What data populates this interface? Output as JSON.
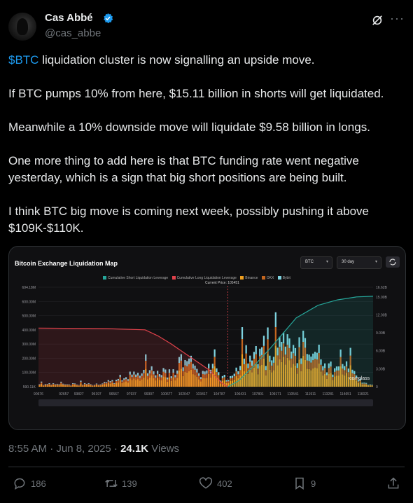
{
  "author": {
    "name": "Cas Abbé",
    "handle": "@cas_abbe"
  },
  "tweet": {
    "cashtag": "$BTC",
    "line1_rest": " liquidation cluster is now signalling an upside move.",
    "p2": "If BTC pumps 10% from here, $15.11 billion in shorts will get liquidated.",
    "p3": "Meanwhile a 10% downside move will liquidate $9.58 billion in longs.",
    "p4": "One more thing to add here is that BTC funding rate went negative yesterday, which is a sign that big short positions are being built.",
    "p5": "I think BTC big move is coming next week, possibly pushing it above $109K-$110K."
  },
  "media": {
    "title": "Bitcoin Exchange Liquidation Map",
    "asset_select": "BTC",
    "range_select": "30 day",
    "watermark": "coinglass",
    "current_price_label": "Current Price: 105451"
  },
  "chart_data": {
    "type": "bar",
    "title": "Bitcoin Exchange Liquidation Map",
    "legend": [
      "Cumulative Short Liquidation Leverage",
      "Cumulative Long Liquidation Leverage",
      "Binance",
      "OKX",
      "Bybit"
    ],
    "colors": {
      "short": "#26a69a",
      "long": "#e0424b",
      "binance": "#f0a020",
      "okx": "#c4661f",
      "bybit": "#7fd3e0"
    },
    "left_ticks": [
      "694.18M",
      "600.00M",
      "500.00M",
      "400.00M",
      "300.00M",
      "200.00M",
      "100.00M",
      "590.11K"
    ],
    "right_ticks": [
      "16.62B",
      "15.00B",
      "12.00B",
      "9.00B",
      "6.00B",
      "3.00B",
      "0"
    ],
    "x_ticks": [
      "90676",
      "92657",
      "93827",
      "95197",
      "96567",
      "97937",
      "99307",
      "100677",
      "102047",
      "103417",
      "104787",
      "106431",
      "107801",
      "109171",
      "110541",
      "111911",
      "113281",
      "114651",
      "116021"
    ],
    "current_price": 105451,
    "x_range": [
      90676,
      116800
    ],
    "left_range": [
      0,
      694.18
    ],
    "right_range": [
      0,
      16.62
    ],
    "long_cumulative": [
      [
        90676,
        9.8
      ],
      [
        96000,
        9.7
      ],
      [
        99000,
        9.5
      ],
      [
        100000,
        8.5
      ],
      [
        101000,
        7.2
      ],
      [
        102500,
        5.0
      ],
      [
        104000,
        2.8
      ],
      [
        105000,
        0.6
      ],
      [
        105451,
        0
      ]
    ],
    "short_cumulative": [
      [
        105451,
        0
      ],
      [
        106300,
        1.0
      ],
      [
        107500,
        3.5
      ],
      [
        108800,
        6.5
      ],
      [
        109800,
        9.0
      ],
      [
        110800,
        11.5
      ],
      [
        112500,
        13.6
      ],
      [
        114000,
        14.5
      ],
      [
        115500,
        15.0
      ],
      [
        116800,
        15.11
      ]
    ]
  },
  "meta": {
    "time": "8:55 AM · Jun 8, 2025 · ",
    "views_num": "24.1K",
    "views_label": " Views"
  },
  "actions": {
    "replies": "186",
    "reposts": "139",
    "likes": "402",
    "bookmarks": "9"
  }
}
